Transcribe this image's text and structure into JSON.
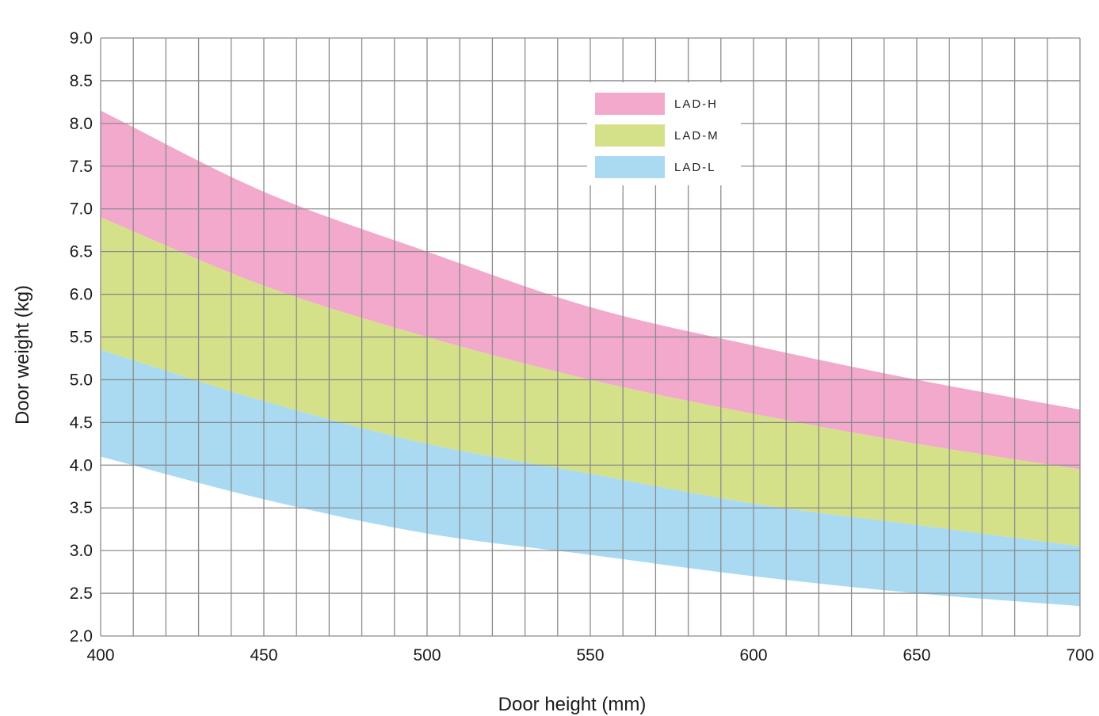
{
  "chart_data": {
    "type": "area",
    "title": "",
    "xlabel": "Door height (mm)",
    "ylabel": "Door weight (kg)",
    "xlim": [
      400,
      700
    ],
    "ylim": [
      2.0,
      9.0
    ],
    "x_ticks": [
      400,
      450,
      500,
      550,
      600,
      650,
      700
    ],
    "x_tick_labels": [
      "400",
      "450",
      "500",
      "550",
      "600",
      "650",
      "700"
    ],
    "y_ticks": [
      2.0,
      2.5,
      3.0,
      3.5,
      4.0,
      4.5,
      5.0,
      5.5,
      6.0,
      6.5,
      7.0,
      7.5,
      8.0,
      8.5,
      9.0
    ],
    "y_tick_labels": [
      "2.0",
      "2.5",
      "3.0",
      "3.5",
      "4.0",
      "4.5",
      "5.0",
      "5.5",
      "6.0",
      "6.5",
      "7.0",
      "7.5",
      "8.0",
      "8.5",
      "9.0"
    ],
    "grid": true,
    "legend_position": "top-center",
    "x": [
      400,
      450,
      500,
      550,
      600,
      650,
      700
    ],
    "series": [
      {
        "name": "LAD-H",
        "color": "#f2a9cb",
        "lower": [
          6.9,
          6.1,
          5.5,
          5.0,
          4.6,
          4.25,
          3.95
        ],
        "upper": [
          8.15,
          7.2,
          6.5,
          5.85,
          5.4,
          5.0,
          4.65
        ]
      },
      {
        "name": "LAD-M",
        "color": "#d5e189",
        "lower": [
          5.35,
          4.75,
          4.25,
          3.9,
          3.55,
          3.3,
          3.05
        ],
        "upper": [
          6.9,
          6.1,
          5.5,
          5.0,
          4.6,
          4.25,
          3.95
        ]
      },
      {
        "name": "LAD-L",
        "color": "#a9daf2",
        "lower": [
          4.1,
          3.6,
          3.2,
          2.95,
          2.7,
          2.5,
          2.35
        ],
        "upper": [
          5.35,
          4.75,
          4.25,
          3.9,
          3.55,
          3.3,
          3.05
        ]
      }
    ]
  }
}
